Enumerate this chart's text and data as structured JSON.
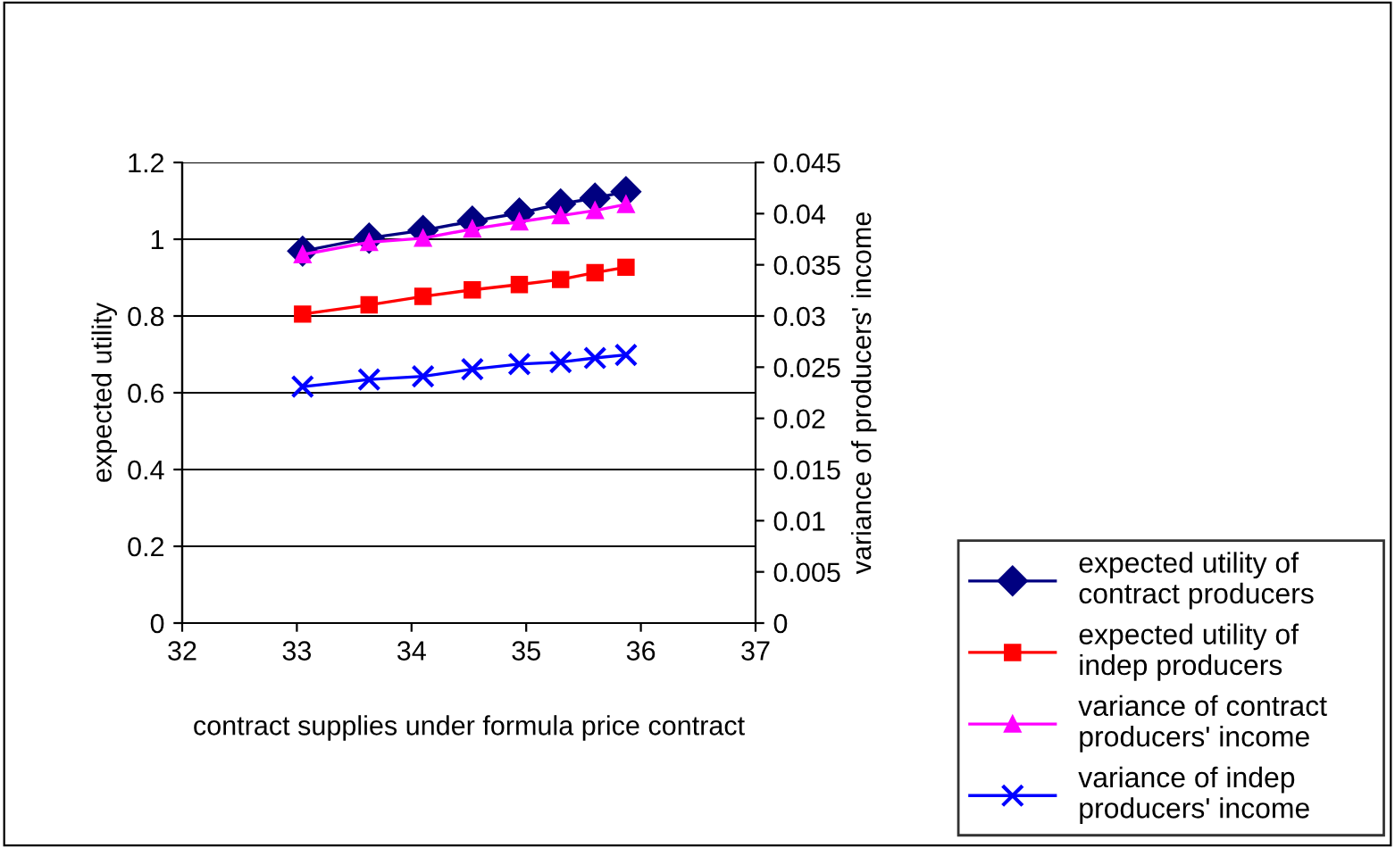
{
  "chart_data": {
    "type": "line",
    "xlabel": "contract supplies under formula price contract",
    "ylabel": "expected utility",
    "y2label": "variance of producers' income",
    "xlim": [
      32,
      37
    ],
    "xticks": [
      32,
      33,
      34,
      35,
      36,
      37
    ],
    "ylim": [
      0,
      1.2
    ],
    "yticks": [
      0,
      0.2,
      0.4,
      0.6,
      0.8,
      1,
      1.2
    ],
    "y2lim": [
      0,
      0.045
    ],
    "y2ticks": [
      0,
      0.005,
      0.01,
      0.015,
      0.02,
      0.025,
      0.03,
      0.035,
      0.04,
      0.045
    ],
    "grid": "y",
    "legend": "right",
    "x": [
      33.05,
      33.63,
      34.1,
      34.53,
      34.94,
      35.3,
      35.6,
      35.87
    ],
    "series": [
      {
        "name": "expected utility of contract producers",
        "color": "#000080",
        "marker": "diamond",
        "values": [
          0.969,
          1.003,
          1.023,
          1.047,
          1.068,
          1.092,
          1.107,
          1.124
        ]
      },
      {
        "name": "expected utility of indep producers",
        "color": "#ff0000",
        "marker": "square",
        "values": [
          0.805,
          0.829,
          0.851,
          0.868,
          0.882,
          0.895,
          0.913,
          0.927
        ]
      },
      {
        "name": "variance of contract producers' income",
        "color": "#ff00ff",
        "marker": "triangle",
        "axis": "y2",
        "values": [
          0.036,
          0.0372,
          0.0376,
          0.0385,
          0.0392,
          0.0398,
          0.0403,
          0.0409
        ]
      },
      {
        "name": "variance of indep producers' income",
        "color": "#0000ff",
        "marker": "cross",
        "axis": "y2",
        "values": [
          0.0231,
          0.0238,
          0.0241,
          0.0248,
          0.0253,
          0.0255,
          0.0259,
          0.0262
        ]
      }
    ]
  }
}
